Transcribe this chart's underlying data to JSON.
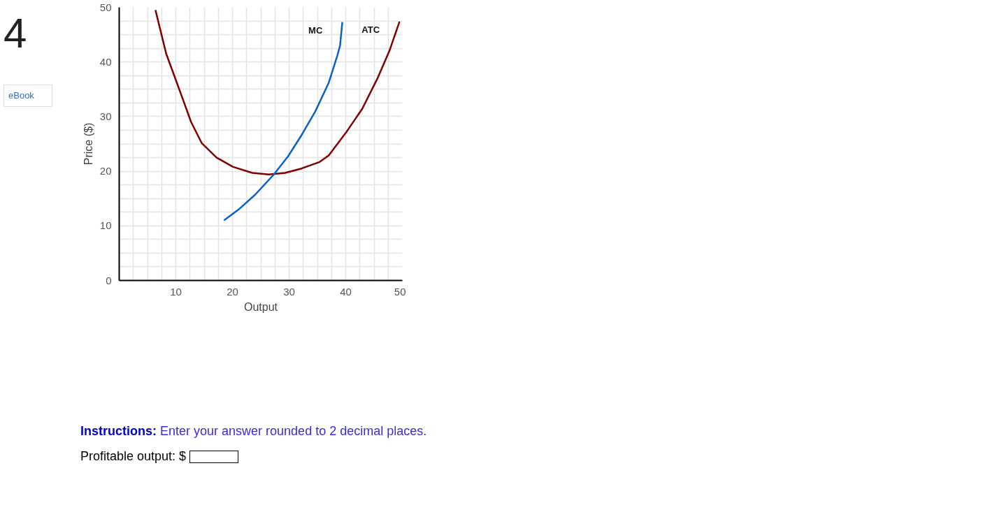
{
  "chart_data": {
    "type": "line",
    "xlabel": "Output",
    "ylabel": "Price ($)",
    "xlim": [
      0,
      50
    ],
    "ylim": [
      0,
      50
    ],
    "xticks": [
      {
        "value": 2.5,
        "label": null
      },
      {
        "value": 5,
        "label": null
      },
      {
        "value": 7.5,
        "label": null
      },
      10,
      {
        "value": 12.5,
        "label": null
      },
      {
        "value": 15,
        "label": null
      },
      {
        "value": 17.5,
        "label": null
      },
      20,
      {
        "value": 22.5,
        "label": null
      },
      {
        "value": 25,
        "label": null
      },
      {
        "value": 27.5,
        "label": null
      },
      30,
      {
        "value": 32.5,
        "label": null
      },
      {
        "value": 35,
        "label": null
      },
      {
        "value": 37.5,
        "label": null
      },
      40,
      {
        "value": 42.5,
        "label": null
      },
      {
        "value": 45,
        "label": null
      },
      {
        "value": 47.5,
        "label": null
      },
      50
    ],
    "yticks": [
      0,
      {
        "value": 2.5,
        "label": null
      },
      {
        "value": 5,
        "label": null
      },
      {
        "value": 7.5,
        "label": null
      },
      10,
      {
        "value": 12.5,
        "label": null
      },
      {
        "value": 15,
        "label": null
      },
      {
        "value": 17.5,
        "label": null
      },
      20,
      {
        "value": 22.5,
        "label": null
      },
      {
        "value": 25,
        "label": null
      },
      {
        "value": 27.5,
        "label": null
      },
      30,
      {
        "value": 32.5,
        "label": null
      },
      {
        "value": 35,
        "label": null
      },
      {
        "value": 37.5,
        "label": null
      },
      40,
      {
        "value": 42.5,
        "label": null
      },
      {
        "value": 45,
        "label": null
      },
      {
        "value": 47.5,
        "label": null
      },
      50
    ],
    "grid": true,
    "marker": "none",
    "line_style": "solid",
    "series": [
      {
        "name": "ATC",
        "color": "#7f0000",
        "x": [
          6.4,
          8.3,
          10,
          12.7,
          14.6,
          17.2,
          20.1,
          23.5,
          26.4,
          29.3,
          32.2,
          35.4,
          37,
          40,
          42.9,
          45.7,
          47.7,
          49.5
        ],
        "values": [
          49.5,
          41.5,
          36.7,
          29,
          25.1,
          22.5,
          20.8,
          19.7,
          19.4,
          19.7,
          20.5,
          21.7,
          22.9,
          27,
          31.4,
          37.2,
          42,
          47.4
        ]
      },
      {
        "name": "MC",
        "color": "#0a62c4",
        "x": [
          18.5,
          21.1,
          24,
          27.3,
          29.8,
          32.2,
          34.6,
          37,
          38.5,
          39,
          39.4
        ],
        "values": [
          11,
          13,
          15.7,
          19.4,
          22.7,
          26.6,
          30.9,
          36.2,
          41.1,
          43,
          47.3
        ]
      }
    ],
    "annotations": [
      "4",
      "eBook",
      "Instructions: Enter your answer rounded to 2 decimal places.",
      "Profitable output: $"
    ]
  }
}
